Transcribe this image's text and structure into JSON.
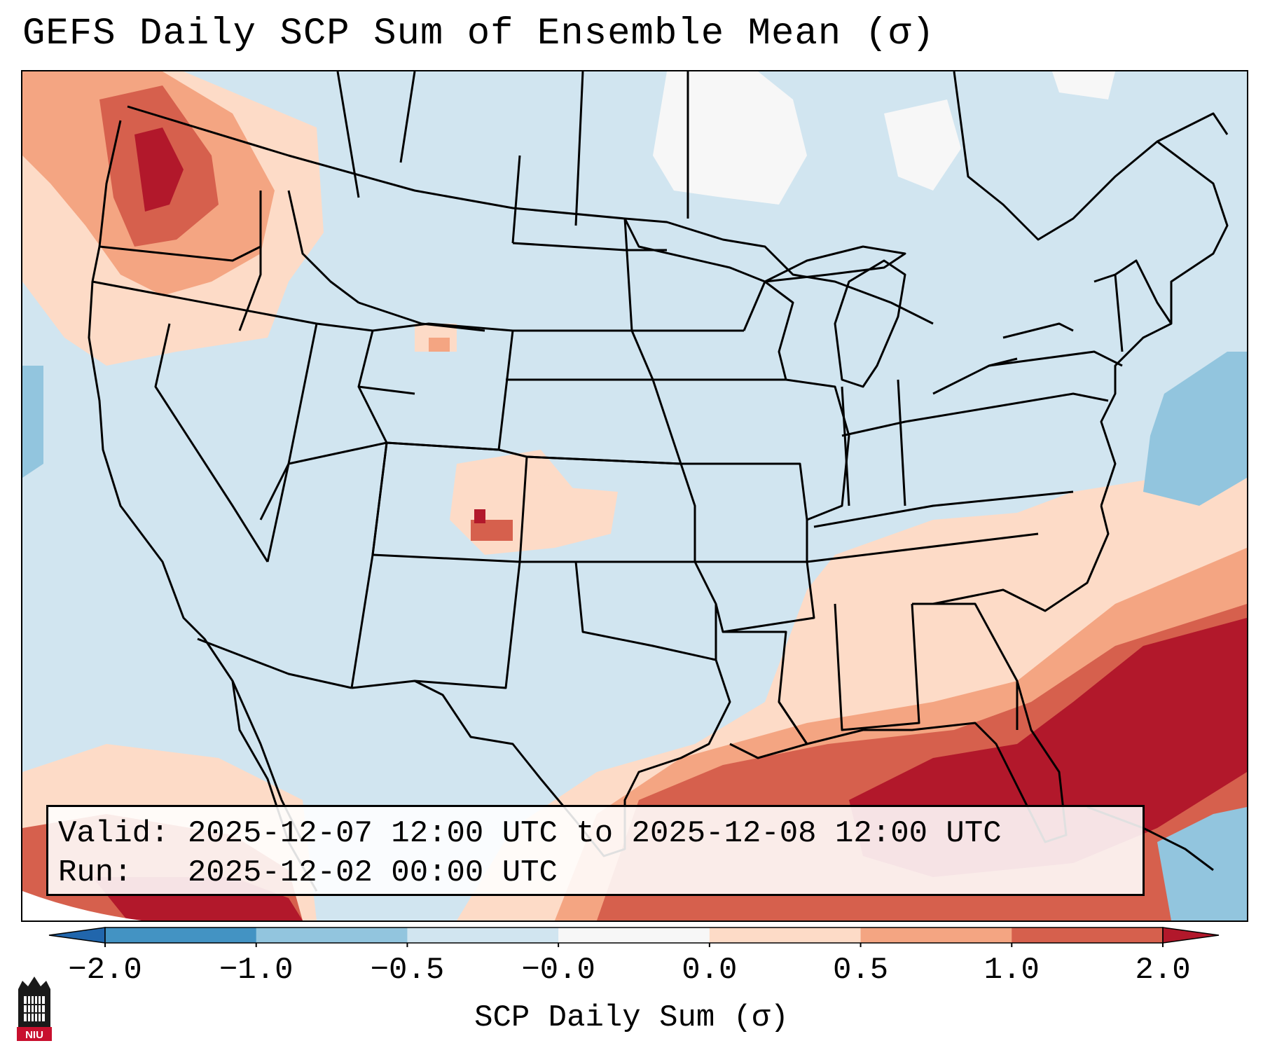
{
  "title": "GEFS Daily SCP Sum of Ensemble Mean (σ)",
  "map": {
    "region": "Continental United States",
    "variable": "SCP Daily Sum",
    "units": "σ"
  },
  "info": {
    "valid_label": "Valid:",
    "valid_value": "2025-12-07 12:00 UTC to 2025-12-08 12:00 UTC",
    "run_label": "Run:",
    "run_value": "2025-12-02 00:00 UTC"
  },
  "colorbar": {
    "label": "SCP Daily Sum (σ)",
    "ticks": [
      "−2.0",
      "−1.0",
      "−0.5",
      "−0.0",
      "0.0",
      "0.5",
      "1.0",
      "2.0"
    ],
    "colors": [
      "#2166ac",
      "#4393c3",
      "#92c5de",
      "#d1e5f0",
      "#f7f7f7",
      "#fddbc7",
      "#f4a582",
      "#d6604d",
      "#b2182b"
    ],
    "bins": [
      {
        "from": "−2.0",
        "to": "−1.0",
        "color": "#4393c3"
      },
      {
        "from": "−1.0",
        "to": "−0.5",
        "color": "#92c5de"
      },
      {
        "from": "−0.5",
        "to": "−0.0",
        "color": "#d1e5f0"
      },
      {
        "from": "−0.0",
        "to": "0.0",
        "color": "#f7f7f7"
      },
      {
        "from": "0.0",
        "to": "0.5",
        "color": "#fddbc7"
      },
      {
        "from": "0.5",
        "to": "1.0",
        "color": "#f4a582"
      },
      {
        "from": "1.0",
        "to": "2.0",
        "color": "#d6604d"
      }
    ],
    "extend_low_color": "#2166ac",
    "extend_high_color": "#b2182b"
  },
  "logo": {
    "text": "NIU",
    "name": "Northern Illinois University"
  }
}
